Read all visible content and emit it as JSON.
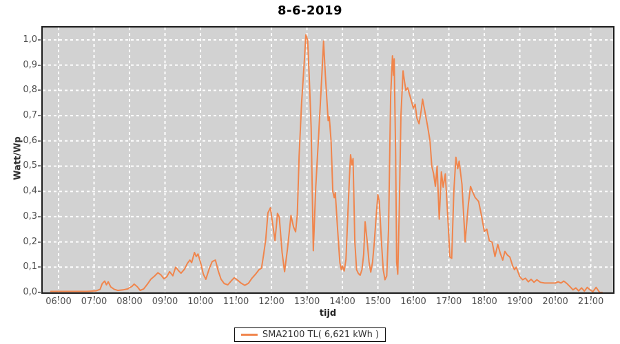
{
  "colors": {
    "page_bg": "#ffffff",
    "plot_bg": "#d2d2d2",
    "grid": "#ffffff",
    "plot_border": "#1c1c1c",
    "tick": "#777777",
    "tick_label": "#4f4f4f",
    "axis_label": "#222222",
    "title": "#000000",
    "series_line": "#f0854c",
    "legend_bg": "#ffffff",
    "legend_border": "#000000"
  },
  "chart_data": {
    "type": "line",
    "title": "8-6-2019",
    "xlabel": "tijd",
    "ylabel": "Watt/Wp",
    "grid": "white dashed, hourly vertical and 0.1 horizontal",
    "legend_position": "bottom-center",
    "x_domain": [
      5.553,
      21.63
    ],
    "y_domain": [
      0,
      1.049
    ],
    "x_ticks": [
      {
        "value": 6,
        "label": "06:00"
      },
      {
        "value": 7,
        "label": "07:00"
      },
      {
        "value": 8,
        "label": "08:00"
      },
      {
        "value": 9,
        "label": "09:00"
      },
      {
        "value": 10,
        "label": "10:00"
      },
      {
        "value": 11,
        "label": "11:00"
      },
      {
        "value": 12,
        "label": "12:00"
      },
      {
        "value": 13,
        "label": "13:00"
      },
      {
        "value": 14,
        "label": "14:00"
      },
      {
        "value": 15,
        "label": "15:00"
      },
      {
        "value": 16,
        "label": "16:00"
      },
      {
        "value": 17,
        "label": "17:00"
      },
      {
        "value": 18,
        "label": "18:00"
      },
      {
        "value": 19,
        "label": "19:00"
      },
      {
        "value": 20,
        "label": "20:00"
      },
      {
        "value": 21,
        "label": "21:00"
      }
    ],
    "y_ticks": [
      {
        "value": 0.0,
        "label": "0,0"
      },
      {
        "value": 0.1,
        "label": "0,1"
      },
      {
        "value": 0.2,
        "label": "0,2"
      },
      {
        "value": 0.3,
        "label": "0,3"
      },
      {
        "value": 0.4,
        "label": "0,4"
      },
      {
        "value": 0.5,
        "label": "0,5"
      },
      {
        "value": 0.6,
        "label": "0,6"
      },
      {
        "value": 0.7,
        "label": "0,7"
      },
      {
        "value": 0.8,
        "label": "0,8"
      },
      {
        "value": 0.9,
        "label": "0,9"
      },
      {
        "value": 1.0,
        "label": "1,0"
      }
    ],
    "series": [
      {
        "name": "SMA2100 TL( 6,621 kWh )",
        "color": "#f0854c",
        "x_unit": "decimal_hours",
        "y_unit": "Watt/Wp",
        "points": [
          [
            5.78,
            0.004
          ],
          [
            6.3,
            0.004
          ],
          [
            6.8,
            0.004
          ],
          [
            7.05,
            0.006
          ],
          [
            7.17,
            0.012
          ],
          [
            7.23,
            0.035
          ],
          [
            7.3,
            0.045
          ],
          [
            7.35,
            0.03
          ],
          [
            7.4,
            0.042
          ],
          [
            7.47,
            0.022
          ],
          [
            7.57,
            0.012
          ],
          [
            7.67,
            0.008
          ],
          [
            7.82,
            0.01
          ],
          [
            7.95,
            0.014
          ],
          [
            8.07,
            0.024
          ],
          [
            8.13,
            0.033
          ],
          [
            8.22,
            0.022
          ],
          [
            8.3,
            0.008
          ],
          [
            8.4,
            0.014
          ],
          [
            8.5,
            0.032
          ],
          [
            8.6,
            0.052
          ],
          [
            8.7,
            0.064
          ],
          [
            8.8,
            0.078
          ],
          [
            8.88,
            0.07
          ],
          [
            8.97,
            0.054
          ],
          [
            9.05,
            0.062
          ],
          [
            9.13,
            0.082
          ],
          [
            9.22,
            0.066
          ],
          [
            9.3,
            0.1
          ],
          [
            9.38,
            0.086
          ],
          [
            9.45,
            0.076
          ],
          [
            9.55,
            0.092
          ],
          [
            9.63,
            0.115
          ],
          [
            9.7,
            0.128
          ],
          [
            9.75,
            0.118
          ],
          [
            9.83,
            0.158
          ],
          [
            9.88,
            0.142
          ],
          [
            9.93,
            0.152
          ],
          [
            10.0,
            0.12
          ],
          [
            10.08,
            0.072
          ],
          [
            10.15,
            0.052
          ],
          [
            10.25,
            0.095
          ],
          [
            10.33,
            0.122
          ],
          [
            10.42,
            0.128
          ],
          [
            10.5,
            0.085
          ],
          [
            10.58,
            0.052
          ],
          [
            10.67,
            0.035
          ],
          [
            10.77,
            0.03
          ],
          [
            10.87,
            0.046
          ],
          [
            10.95,
            0.058
          ],
          [
            11.05,
            0.048
          ],
          [
            11.15,
            0.036
          ],
          [
            11.25,
            0.028
          ],
          [
            11.35,
            0.036
          ],
          [
            11.45,
            0.056
          ],
          [
            11.55,
            0.072
          ],
          [
            11.65,
            0.09
          ],
          [
            11.72,
            0.096
          ],
          [
            11.78,
            0.15
          ],
          [
            11.84,
            0.21
          ],
          [
            11.9,
            0.315
          ],
          [
            11.97,
            0.335
          ],
          [
            12.03,
            0.275
          ],
          [
            12.1,
            0.205
          ],
          [
            12.17,
            0.313
          ],
          [
            12.22,
            0.298
          ],
          [
            12.3,
            0.158
          ],
          [
            12.37,
            0.082
          ],
          [
            12.45,
            0.17
          ],
          [
            12.55,
            0.305
          ],
          [
            12.62,
            0.26
          ],
          [
            12.68,
            0.24
          ],
          [
            12.73,
            0.31
          ],
          [
            12.78,
            0.54
          ],
          [
            12.85,
            0.75
          ],
          [
            12.92,
            0.9
          ],
          [
            12.97,
            1.02
          ],
          [
            13.02,
            0.998
          ],
          [
            13.07,
            0.84
          ],
          [
            13.12,
            0.65
          ],
          [
            13.18,
            0.165
          ],
          [
            13.25,
            0.42
          ],
          [
            13.33,
            0.62
          ],
          [
            13.42,
            0.86
          ],
          [
            13.47,
            0.995
          ],
          [
            13.52,
            0.86
          ],
          [
            13.57,
            0.745
          ],
          [
            13.6,
            0.68
          ],
          [
            13.63,
            0.695
          ],
          [
            13.68,
            0.6
          ],
          [
            13.73,
            0.4
          ],
          [
            13.77,
            0.375
          ],
          [
            13.8,
            0.395
          ],
          [
            13.87,
            0.24
          ],
          [
            13.93,
            0.117
          ],
          [
            13.97,
            0.09
          ],
          [
            14.0,
            0.105
          ],
          [
            14.05,
            0.085
          ],
          [
            14.1,
            0.13
          ],
          [
            14.15,
            0.3
          ],
          [
            14.2,
            0.46
          ],
          [
            14.23,
            0.545
          ],
          [
            14.27,
            0.505
          ],
          [
            14.3,
            0.53
          ],
          [
            14.35,
            0.2
          ],
          [
            14.4,
            0.09
          ],
          [
            14.45,
            0.075
          ],
          [
            14.5,
            0.068
          ],
          [
            14.55,
            0.09
          ],
          [
            14.6,
            0.15
          ],
          [
            14.64,
            0.28
          ],
          [
            14.7,
            0.2
          ],
          [
            14.75,
            0.12
          ],
          [
            14.8,
            0.08
          ],
          [
            14.85,
            0.12
          ],
          [
            14.9,
            0.2
          ],
          [
            14.95,
            0.3
          ],
          [
            15.0,
            0.387
          ],
          [
            15.04,
            0.36
          ],
          [
            15.1,
            0.2
          ],
          [
            15.15,
            0.09
          ],
          [
            15.2,
            0.05
          ],
          [
            15.25,
            0.065
          ],
          [
            15.3,
            0.25
          ],
          [
            15.36,
            0.78
          ],
          [
            15.41,
            0.937
          ],
          [
            15.44,
            0.86
          ],
          [
            15.46,
            0.925
          ],
          [
            15.5,
            0.55
          ],
          [
            15.53,
            0.12
          ],
          [
            15.56,
            0.072
          ],
          [
            15.6,
            0.3
          ],
          [
            15.65,
            0.7
          ],
          [
            15.71,
            0.877
          ],
          [
            15.75,
            0.835
          ],
          [
            15.79,
            0.8
          ],
          [
            15.84,
            0.81
          ],
          [
            15.9,
            0.78
          ],
          [
            15.95,
            0.755
          ],
          [
            16.0,
            0.73
          ],
          [
            16.05,
            0.745
          ],
          [
            16.1,
            0.69
          ],
          [
            16.16,
            0.668
          ],
          [
            16.22,
            0.72
          ],
          [
            16.26,
            0.765
          ],
          [
            16.32,
            0.72
          ],
          [
            16.4,
            0.66
          ],
          [
            16.47,
            0.6
          ],
          [
            16.52,
            0.5
          ],
          [
            16.57,
            0.47
          ],
          [
            16.62,
            0.42
          ],
          [
            16.67,
            0.5
          ],
          [
            16.73,
            0.29
          ],
          [
            16.79,
            0.477
          ],
          [
            16.84,
            0.417
          ],
          [
            16.9,
            0.469
          ],
          [
            16.97,
            0.3
          ],
          [
            17.03,
            0.14
          ],
          [
            17.08,
            0.135
          ],
          [
            17.14,
            0.4
          ],
          [
            17.2,
            0.535
          ],
          [
            17.25,
            0.49
          ],
          [
            17.29,
            0.52
          ],
          [
            17.37,
            0.428
          ],
          [
            17.46,
            0.2
          ],
          [
            17.55,
            0.35
          ],
          [
            17.61,
            0.42
          ],
          [
            17.67,
            0.398
          ],
          [
            17.74,
            0.376
          ],
          [
            17.84,
            0.36
          ],
          [
            17.92,
            0.305
          ],
          [
            18.0,
            0.242
          ],
          [
            18.07,
            0.25
          ],
          [
            18.14,
            0.204
          ],
          [
            18.22,
            0.199
          ],
          [
            18.3,
            0.142
          ],
          [
            18.38,
            0.19
          ],
          [
            18.45,
            0.155
          ],
          [
            18.52,
            0.128
          ],
          [
            18.58,
            0.162
          ],
          [
            18.65,
            0.148
          ],
          [
            18.72,
            0.14
          ],
          [
            18.8,
            0.105
          ],
          [
            18.85,
            0.09
          ],
          [
            18.9,
            0.1
          ],
          [
            19.0,
            0.062
          ],
          [
            19.08,
            0.05
          ],
          [
            19.16,
            0.056
          ],
          [
            19.24,
            0.042
          ],
          [
            19.32,
            0.052
          ],
          [
            19.4,
            0.04
          ],
          [
            19.48,
            0.05
          ],
          [
            19.58,
            0.04
          ],
          [
            19.7,
            0.037
          ],
          [
            19.85,
            0.037
          ],
          [
            20.0,
            0.037
          ],
          [
            20.08,
            0.042
          ],
          [
            20.16,
            0.037
          ],
          [
            20.24,
            0.045
          ],
          [
            20.33,
            0.035
          ],
          [
            20.42,
            0.022
          ],
          [
            20.5,
            0.01
          ],
          [
            20.58,
            0.018
          ],
          [
            20.66,
            0.006
          ],
          [
            20.74,
            0.018
          ],
          [
            20.82,
            0.005
          ],
          [
            20.9,
            0.02
          ],
          [
            20.98,
            0.01
          ],
          [
            21.06,
            0.003
          ],
          [
            21.15,
            0.02
          ],
          [
            21.25,
            0.0
          ],
          [
            21.32,
            0.0
          ]
        ]
      }
    ]
  }
}
